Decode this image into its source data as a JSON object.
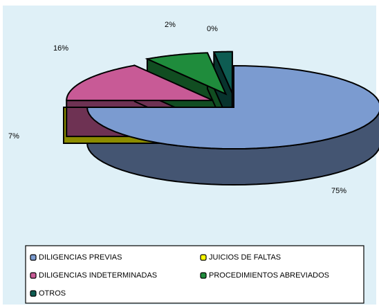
{
  "chart_data": {
    "type": "pie3d",
    "categories": [
      "DILIGENCIAS PREVIAS",
      "JUICIOS DE FALTAS",
      "DILIGENCIAS INDETERMINADAS",
      "PROCEDIMIENTOS ABREVIADOS",
      "OTROS"
    ],
    "values": [
      75,
      0,
      16,
      7,
      2
    ],
    "value_labels": [
      "75%",
      "0%",
      "16%",
      "7%",
      "2%"
    ],
    "colors": [
      "#7b9bd0",
      "#ffff00",
      "#c85a96",
      "#1f8c3c",
      "#0e5c52"
    ],
    "legend": "bottom"
  }
}
